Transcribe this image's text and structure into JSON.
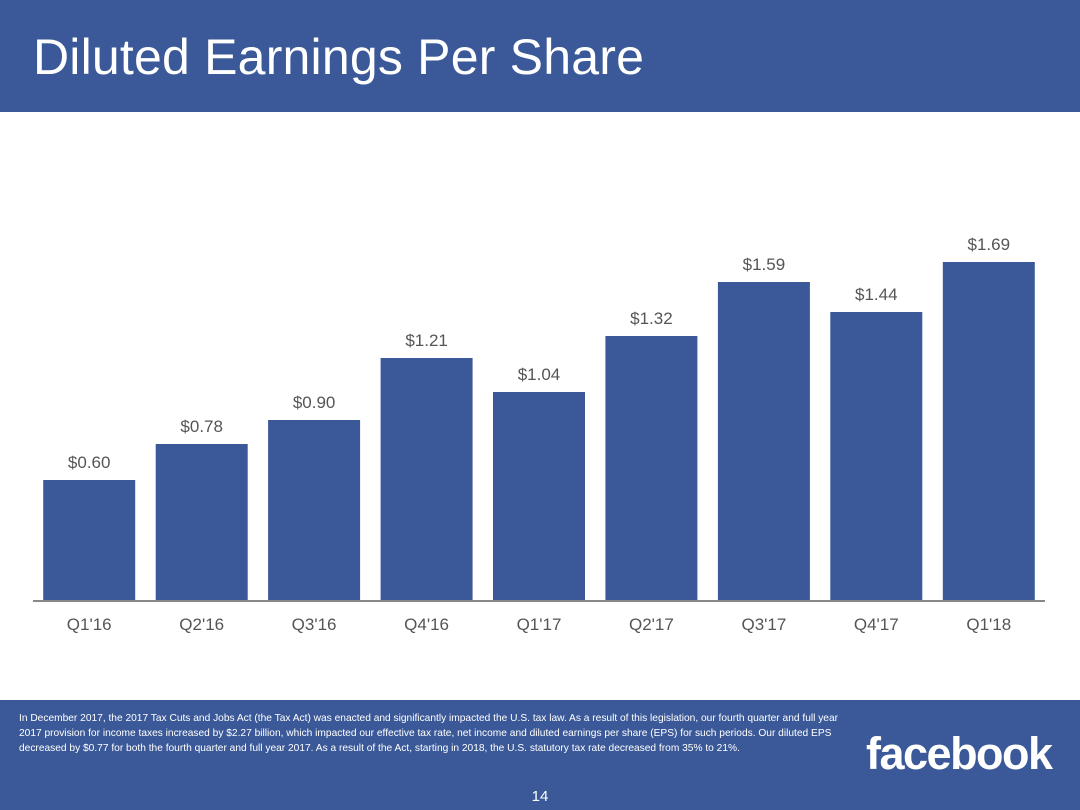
{
  "slide": {
    "title": "Diluted Earnings Per Share",
    "footnote": "In December 2017, the 2017 Tax Cuts and Jobs Act (the Tax Act) was enacted and significantly impacted the U.S. tax law. As a result of this legislation, our fourth quarter and full year 2017 provision for income taxes increased by $2.27 billion, which impacted our effective tax rate, net income and diluted earnings per share (EPS) for such periods. Our diluted EPS decreased by $0.77 for both the fourth quarter and full year 2017. As a result of the Act, starting in 2018, the U.S. statutory tax rate decreased from 35% to 21%.",
    "logo_text": "facebook",
    "page_number": "14"
  },
  "colors": {
    "brand": "#3b5998",
    "bar": "#3b5998",
    "label_text": "#555555",
    "axis": "#888888"
  },
  "chart_data": {
    "type": "bar",
    "title": "Diluted Earnings Per Share",
    "categories": [
      "Q1'16",
      "Q2'16",
      "Q3'16",
      "Q4'16",
      "Q1'17",
      "Q2'17",
      "Q3'17",
      "Q4'17",
      "Q1'18"
    ],
    "values": [
      0.6,
      0.78,
      0.9,
      1.21,
      1.04,
      1.32,
      1.59,
      1.44,
      1.69
    ],
    "value_labels": [
      "$0.60",
      "$0.78",
      "$0.90",
      "$1.21",
      "$1.04",
      "$1.32",
      "$1.59",
      "$1.44",
      "$1.69"
    ],
    "xlabel": "",
    "ylabel": "",
    "ylim": [
      0,
      1.69
    ],
    "grid": false,
    "legend": "none"
  }
}
